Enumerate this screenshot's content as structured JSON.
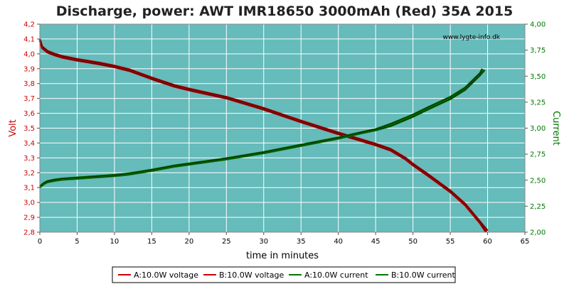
{
  "chart_data": {
    "type": "line",
    "title": "Discharge, power: AWT IMR18650 3000mAh (Red) 35A 2015",
    "watermark": "www.lygte-info.dk",
    "xlabel": "time in minutes",
    "ylabel_left": "Volt",
    "ylabel_right": "Current",
    "xlim": [
      0,
      65
    ],
    "ylim_left": [
      2.8,
      4.2
    ],
    "ylim_right": [
      2.0,
      4.0
    ],
    "x_ticks": [
      "0",
      "5",
      "10",
      "15",
      "20",
      "25",
      "30",
      "35",
      "40",
      "45",
      "50",
      "55",
      "60",
      "65"
    ],
    "y_left_ticks": [
      "2,8",
      "2,9",
      "3,0",
      "3,1",
      "3,2",
      "3,3",
      "3,4",
      "3,5",
      "3,6",
      "3,7",
      "3,8",
      "3,9",
      "4,0",
      "4,1",
      "4,2"
    ],
    "y_right_ticks": [
      "2,00",
      "2,25",
      "2,50",
      "2,75",
      "3,00",
      "3,25",
      "3,50",
      "3,75",
      "4,00"
    ],
    "grid": true,
    "legend_position": "bottom",
    "colors": {
      "plot_background": "#66bbbb",
      "grid": "#ffffff",
      "voltage": "#cc0000",
      "current": "#007700",
      "left_axis_text": "#cc0000",
      "right_axis_text": "#007700"
    },
    "series": [
      {
        "name": "A:10.0W voltage",
        "axis": "left",
        "color": "#cc0000",
        "x": [
          0,
          0.3,
          1,
          2,
          3,
          5,
          8,
          10,
          12,
          15,
          18,
          20,
          25,
          30,
          35,
          40,
          43,
          45,
          47,
          49,
          50,
          52,
          55,
          57,
          58,
          59,
          59.8
        ],
        "y": [
          4.09,
          4.04,
          4.01,
          3.99,
          3.975,
          3.955,
          3.93,
          3.91,
          3.885,
          3.83,
          3.78,
          3.755,
          3.7,
          3.625,
          3.54,
          3.46,
          3.415,
          3.385,
          3.35,
          3.29,
          3.25,
          3.18,
          3.07,
          2.98,
          2.92,
          2.86,
          2.8
        ]
      },
      {
        "name": "B:10.0W voltage",
        "axis": "left",
        "color": "#cc0000",
        "x": [
          0,
          0.3,
          1,
          2,
          3,
          5,
          8,
          10,
          12,
          15,
          18,
          20,
          25,
          30,
          35,
          40,
          43,
          45,
          47,
          49,
          50,
          52,
          55,
          57,
          58,
          59,
          60
        ],
        "y": [
          4.1,
          4.05,
          4.02,
          4.0,
          3.985,
          3.965,
          3.94,
          3.92,
          3.895,
          3.84,
          3.79,
          3.765,
          3.71,
          3.635,
          3.55,
          3.47,
          3.425,
          3.395,
          3.36,
          3.3,
          3.26,
          3.19,
          3.08,
          2.99,
          2.93,
          2.87,
          2.81
        ]
      },
      {
        "name": "A:10.0W current",
        "axis": "right",
        "color": "#007700",
        "x": [
          0,
          0.5,
          1,
          2,
          3,
          5,
          8,
          10,
          12,
          15,
          18,
          20,
          25,
          30,
          35,
          40,
          43,
          45,
          47,
          50,
          52,
          55,
          57,
          58,
          59,
          59.6
        ],
        "y": [
          2.43,
          2.46,
          2.48,
          2.495,
          2.505,
          2.515,
          2.53,
          2.54,
          2.555,
          2.59,
          2.63,
          2.65,
          2.7,
          2.76,
          2.83,
          2.9,
          2.95,
          2.98,
          3.02,
          3.11,
          3.18,
          3.28,
          3.37,
          3.44,
          3.51,
          3.56
        ]
      },
      {
        "name": "B:10.0W current",
        "axis": "right",
        "color": "#007700",
        "x": [
          0,
          0.5,
          1,
          2,
          3,
          5,
          8,
          10,
          12,
          15,
          18,
          20,
          25,
          30,
          35,
          40,
          43,
          45,
          47,
          50,
          52,
          55,
          57,
          58,
          59,
          59.3
        ],
        "y": [
          2.44,
          2.47,
          2.49,
          2.505,
          2.515,
          2.525,
          2.54,
          2.55,
          2.565,
          2.6,
          2.64,
          2.66,
          2.71,
          2.77,
          2.84,
          2.91,
          2.96,
          2.99,
          3.04,
          3.13,
          3.2,
          3.3,
          3.39,
          3.46,
          3.53,
          3.57
        ]
      }
    ]
  }
}
